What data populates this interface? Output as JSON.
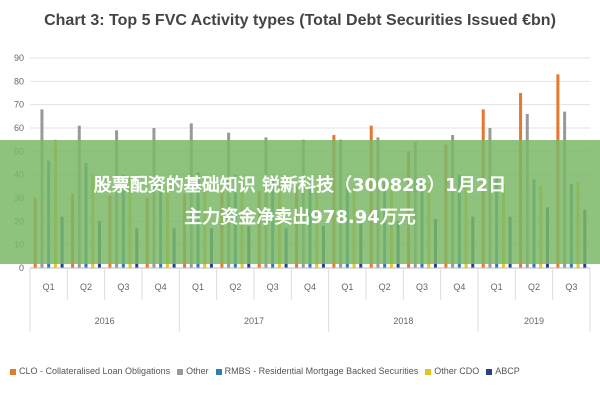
{
  "chart_data": {
    "type": "bar",
    "title": "Chart 3: Top 5 FVC Activity types (Total Debt Securities Issued €bn)",
    "ylim": [
      0,
      90
    ],
    "yticks": [
      0,
      10,
      20,
      30,
      40,
      50,
      60,
      70,
      80,
      90
    ],
    "categories": [
      "Q1",
      "Q2",
      "Q3",
      "Q4",
      "Q1",
      "Q2",
      "Q3",
      "Q4",
      "Q1",
      "Q2",
      "Q3",
      "Q4",
      "Q1",
      "Q2",
      "Q3"
    ],
    "years": [
      {
        "label": "2016",
        "span": 4
      },
      {
        "label": "2017",
        "span": 4
      },
      {
        "label": "2018",
        "span": 4
      },
      {
        "label": "2019",
        "span": 3
      }
    ],
    "series": [
      {
        "name": "CLO - Collateralised Loan Obligations",
        "color": "#e8772e",
        "values": [
          30,
          32,
          31,
          30,
          32,
          33,
          33,
          35,
          57,
          61,
          50,
          53,
          68,
          75,
          83
        ]
      },
      {
        "name": "Other",
        "color": "#999999",
        "values": [
          68,
          61,
          59,
          60,
          62,
          58,
          56,
          55,
          55,
          56,
          54,
          57,
          60,
          66,
          67
        ]
      },
      {
        "name": "RMBS - Residential Mortgage Backed Securities",
        "color": "#2e7db0",
        "values": [
          46,
          45,
          40,
          39,
          41,
          40,
          39,
          38,
          38,
          37,
          38,
          40,
          39,
          38,
          36
        ]
      },
      {
        "name": "Other CDO",
        "color": "#e8c224",
        "values": [
          55,
          40,
          39,
          35,
          38,
          38,
          37,
          36,
          35,
          36,
          36,
          39,
          36,
          35,
          37
        ]
      },
      {
        "name": "ABCP",
        "color": "#2b3f8f",
        "values": [
          22,
          20,
          17,
          17,
          17,
          18,
          17,
          18,
          20,
          20,
          21,
          22,
          22,
          26,
          25
        ]
      }
    ],
    "grid": true,
    "legend_position": "bottom"
  },
  "banner": {
    "line1": "股票配资的基础知识 锐新科技（300828）1月2日",
    "line2": "主力资金净卖出978.94万元"
  }
}
